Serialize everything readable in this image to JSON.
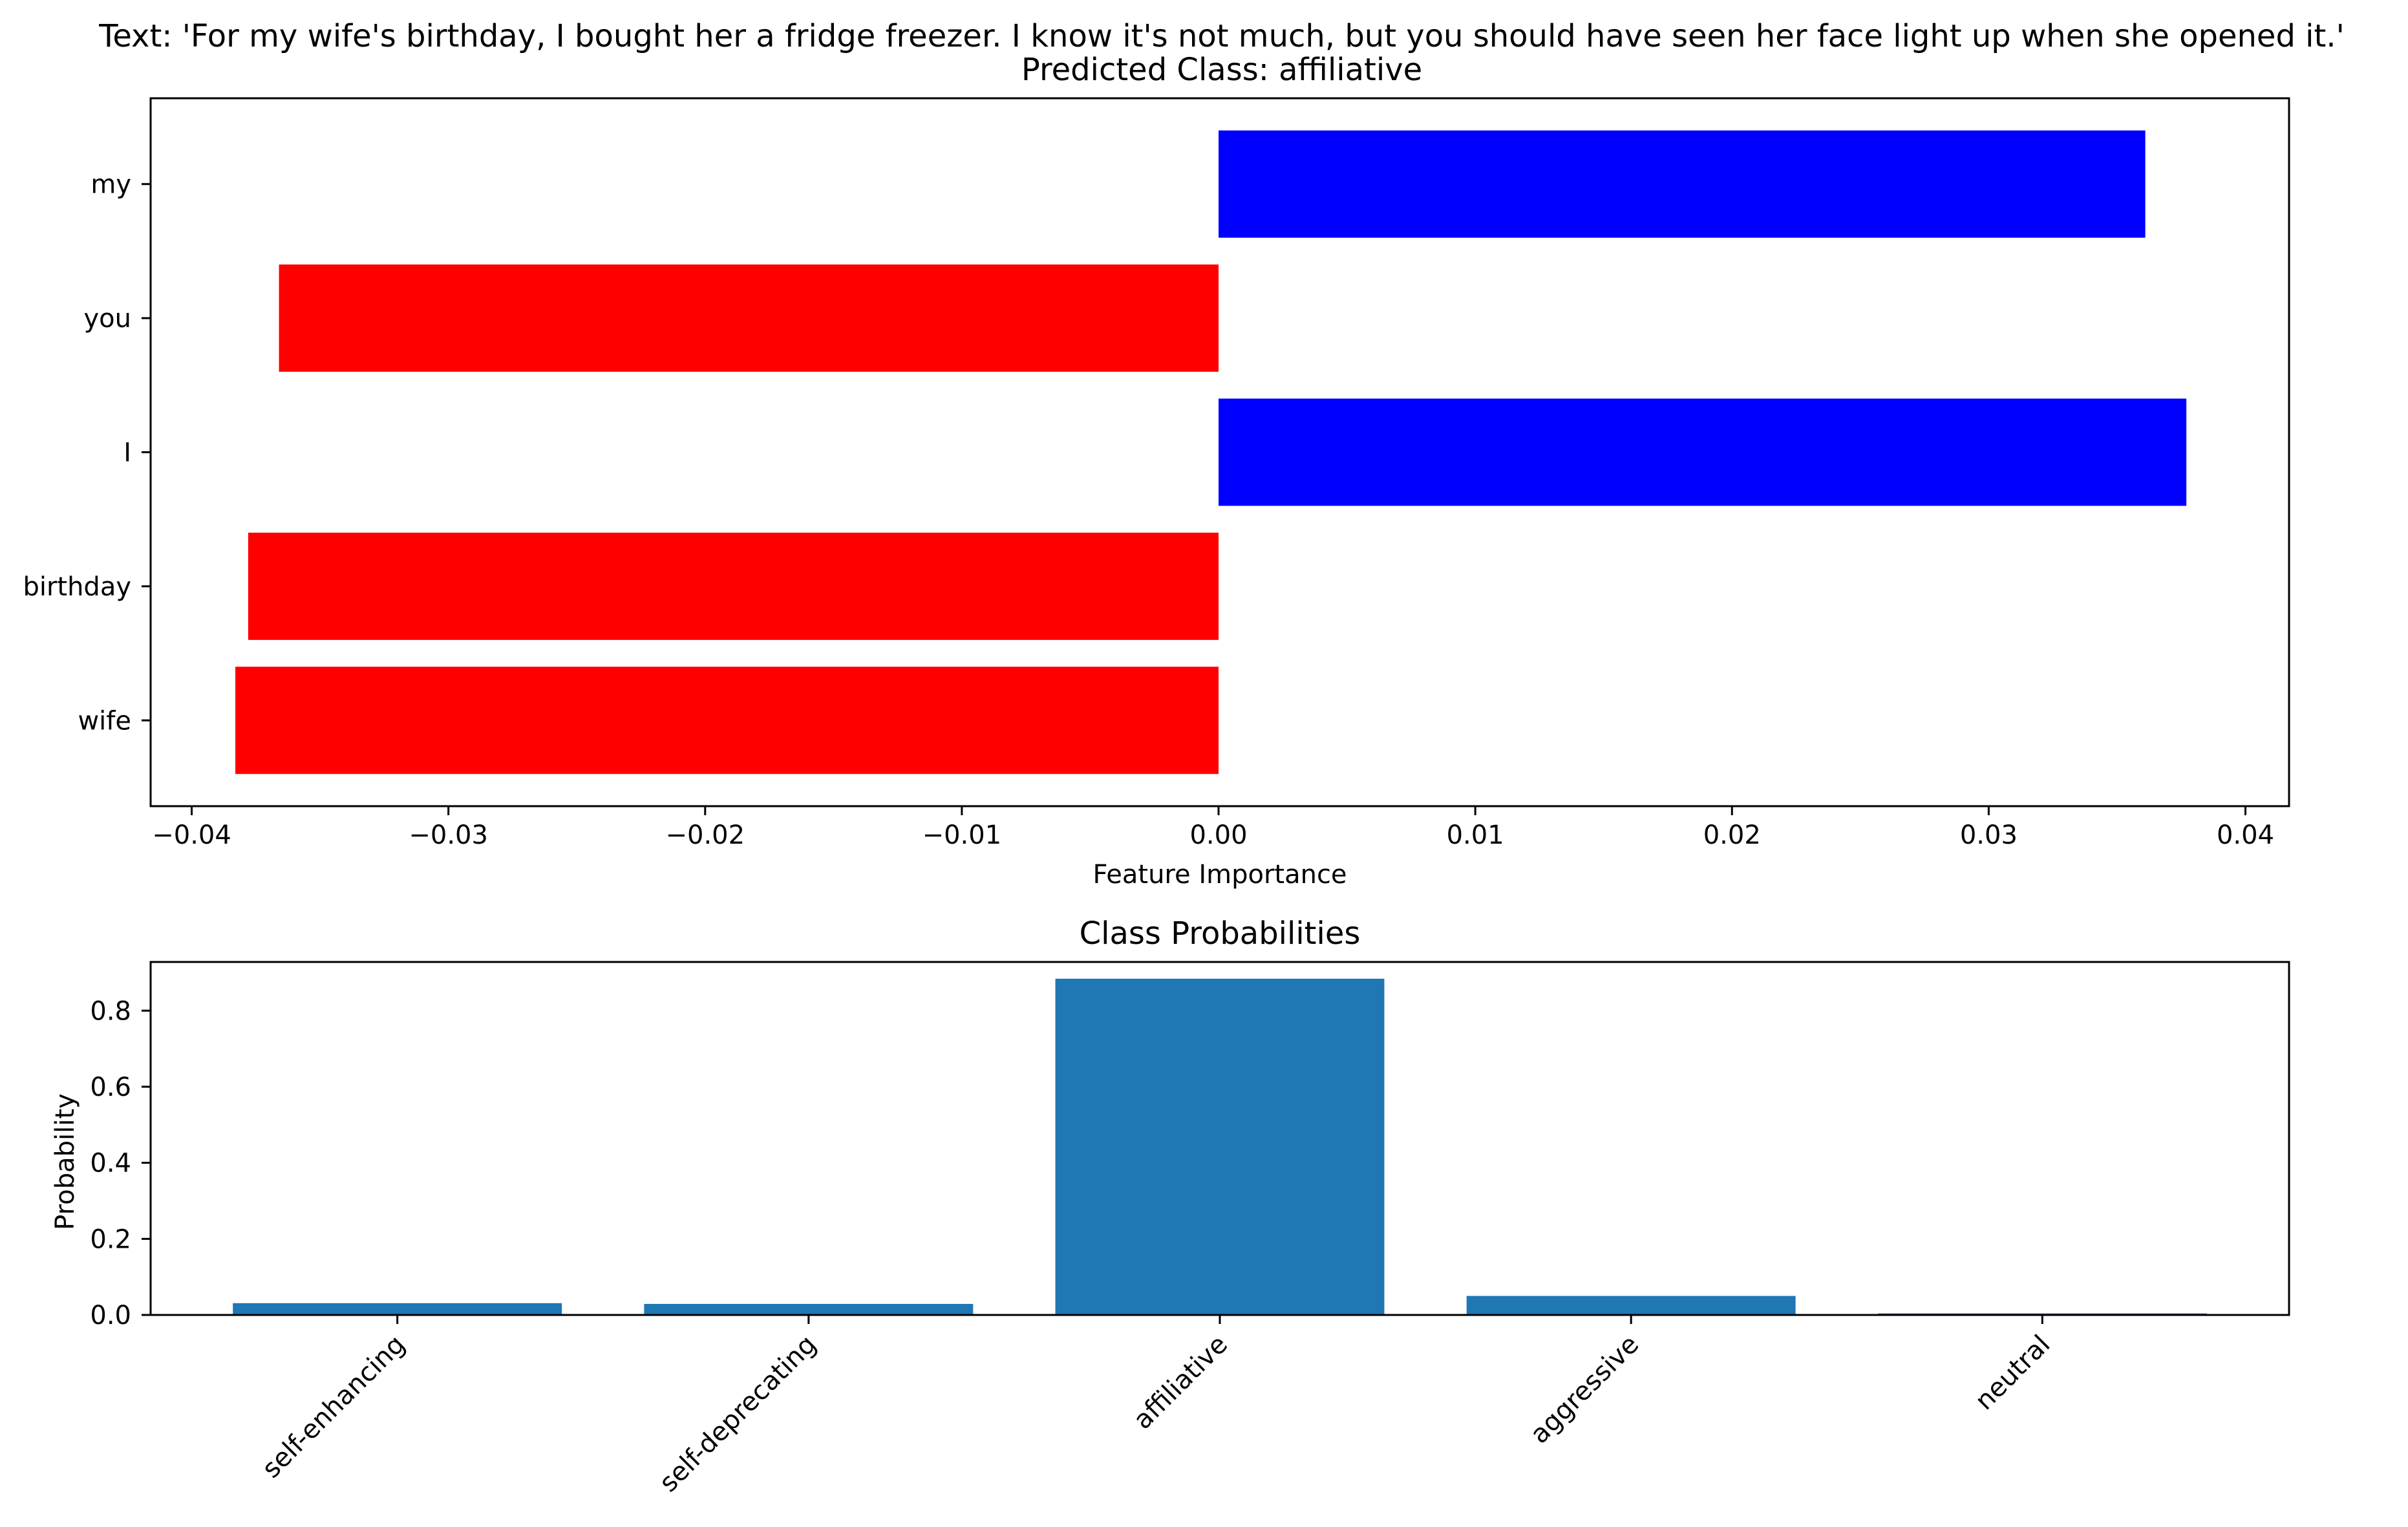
{
  "chart_data": [
    {
      "type": "bar",
      "orientation": "horizontal",
      "title": "Text: 'For my wife's birthday, I bought her a fridge freezer. I know it's not much, but you should have seen her face light up when she opened it.'",
      "subtitle": "Predicted Class: affiliative",
      "xlabel": "Feature Importance",
      "ylabel": "",
      "categories": [
        "wife",
        "birthday",
        "I",
        "you",
        "my"
      ],
      "values": [
        -0.0383,
        -0.0378,
        0.0377,
        -0.0366,
        0.0361
      ],
      "colors": [
        "#ff0000",
        "#ff0000",
        "#0000ff",
        "#ff0000",
        "#0000ff"
      ],
      "xlim": [
        -0.0416,
        0.0417
      ],
      "xticks": [
        -0.04,
        -0.03,
        -0.02,
        -0.01,
        0.0,
        0.01,
        0.02,
        0.03,
        0.04
      ],
      "xtick_labels": [
        "−0.04",
        "−0.03",
        "−0.02",
        "−0.01",
        "0.00",
        "0.01",
        "0.02",
        "0.03",
        "0.04"
      ],
      "grid": false
    },
    {
      "type": "bar",
      "title": "Class Probabilities",
      "xlabel": "",
      "ylabel": "Probability",
      "categories": [
        "self-enhancing",
        "self-deprecating",
        "affiliative",
        "aggressive",
        "neutral"
      ],
      "values": [
        0.031,
        0.029,
        0.884,
        0.05,
        0.004
      ],
      "color": "#1f77b4",
      "ylim": [
        0,
        0.928
      ],
      "yticks": [
        0.0,
        0.2,
        0.4,
        0.6,
        0.8
      ],
      "ytick_labels": [
        "0.0",
        "0.2",
        "0.4",
        "0.6",
        "0.8"
      ],
      "grid": false
    }
  ]
}
